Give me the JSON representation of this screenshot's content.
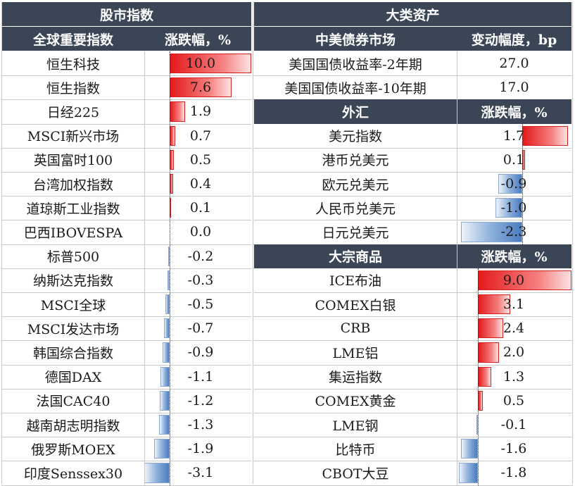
{
  "left": {
    "section_title": "股市指数",
    "col_name": "全球重要指数",
    "col_value": "涨跌幅，%",
    "rows": [
      {
        "name": "恒生科技",
        "value": "10.0",
        "num": 10.0
      },
      {
        "name": "恒生指数",
        "value": "7.6",
        "num": 7.6
      },
      {
        "name": "日经225",
        "value": "1.9",
        "num": 1.9
      },
      {
        "name": "MSCI新兴市场",
        "value": "0.7",
        "num": 0.7
      },
      {
        "name": "英国富时100",
        "value": "0.5",
        "num": 0.5
      },
      {
        "name": "台湾加权指数",
        "value": "0.4",
        "num": 0.4
      },
      {
        "name": "道琼斯工业指数",
        "value": "0.1",
        "num": 0.1
      },
      {
        "name": "巴西IBOVESPA",
        "value": "0.0",
        "num": 0.0
      },
      {
        "name": "标普500",
        "value": "-0.2",
        "num": -0.2
      },
      {
        "name": "纳斯达克指数",
        "value": "-0.3",
        "num": -0.3
      },
      {
        "name": "MSCI全球",
        "value": "-0.5",
        "num": -0.5
      },
      {
        "name": "MSCI发达市场",
        "value": "-0.7",
        "num": -0.7
      },
      {
        "name": "韩国综合指数",
        "value": "-0.9",
        "num": -0.9
      },
      {
        "name": "德国DAX",
        "value": "-1.1",
        "num": -1.1
      },
      {
        "name": "法国CAC40",
        "value": "-1.2",
        "num": -1.2
      },
      {
        "name": "越南胡志明指数",
        "value": "-1.3",
        "num": -1.3
      },
      {
        "name": "俄罗斯MOEX",
        "value": "-1.9",
        "num": -1.9
      },
      {
        "name": "印度Senssex30",
        "value": "-3.1",
        "num": -3.1
      }
    ]
  },
  "right": {
    "section_title": "大类资产",
    "bonds": {
      "col_name": "中美债券市场",
      "col_value": "变动幅度，bp",
      "rows": [
        {
          "name": "美国国债收益率-2年期",
          "value": "27.0"
        },
        {
          "name": "美国国债收益率-10年期",
          "value": "17.0"
        }
      ]
    },
    "fx": {
      "col_name": "外汇",
      "col_value": "涨跌幅，%",
      "rows": [
        {
          "name": "美元指数",
          "value": "1.7",
          "num": 1.7
        },
        {
          "name": "港币兑美元",
          "value": "0.1",
          "num": 0.1
        },
        {
          "name": "欧元兑美元",
          "value": "-0.9",
          "num": -0.9
        },
        {
          "name": "人民币兑美元",
          "value": "-1.0",
          "num": -1.0
        },
        {
          "name": "日元兑美元",
          "value": "-2.3",
          "num": -2.3
        }
      ]
    },
    "commodities": {
      "col_name": "大宗商品",
      "col_value": "涨跌幅，%",
      "rows": [
        {
          "name": "ICE布油",
          "value": "9.0",
          "num": 9.0
        },
        {
          "name": "COMEX白银",
          "value": "3.1",
          "num": 3.1
        },
        {
          "name": "CRB",
          "value": "2.4",
          "num": 2.4
        },
        {
          "name": "LME铝",
          "value": "2.0",
          "num": 2.0
        },
        {
          "name": "集运指数",
          "value": "1.3",
          "num": 1.3
        },
        {
          "name": "COMEX黄金",
          "value": "0.5",
          "num": 0.5
        },
        {
          "name": "LME钢",
          "value": "-0.1",
          "num": -0.1
        },
        {
          "name": "比特币",
          "value": "-1.6",
          "num": -1.6
        },
        {
          "name": "CBOT大豆",
          "value": "-1.8",
          "num": -1.8
        }
      ]
    }
  },
  "colors": {
    "header_bg": "#3a4556",
    "positive": "#e31a1c",
    "negative": "#4a7cc0"
  }
}
